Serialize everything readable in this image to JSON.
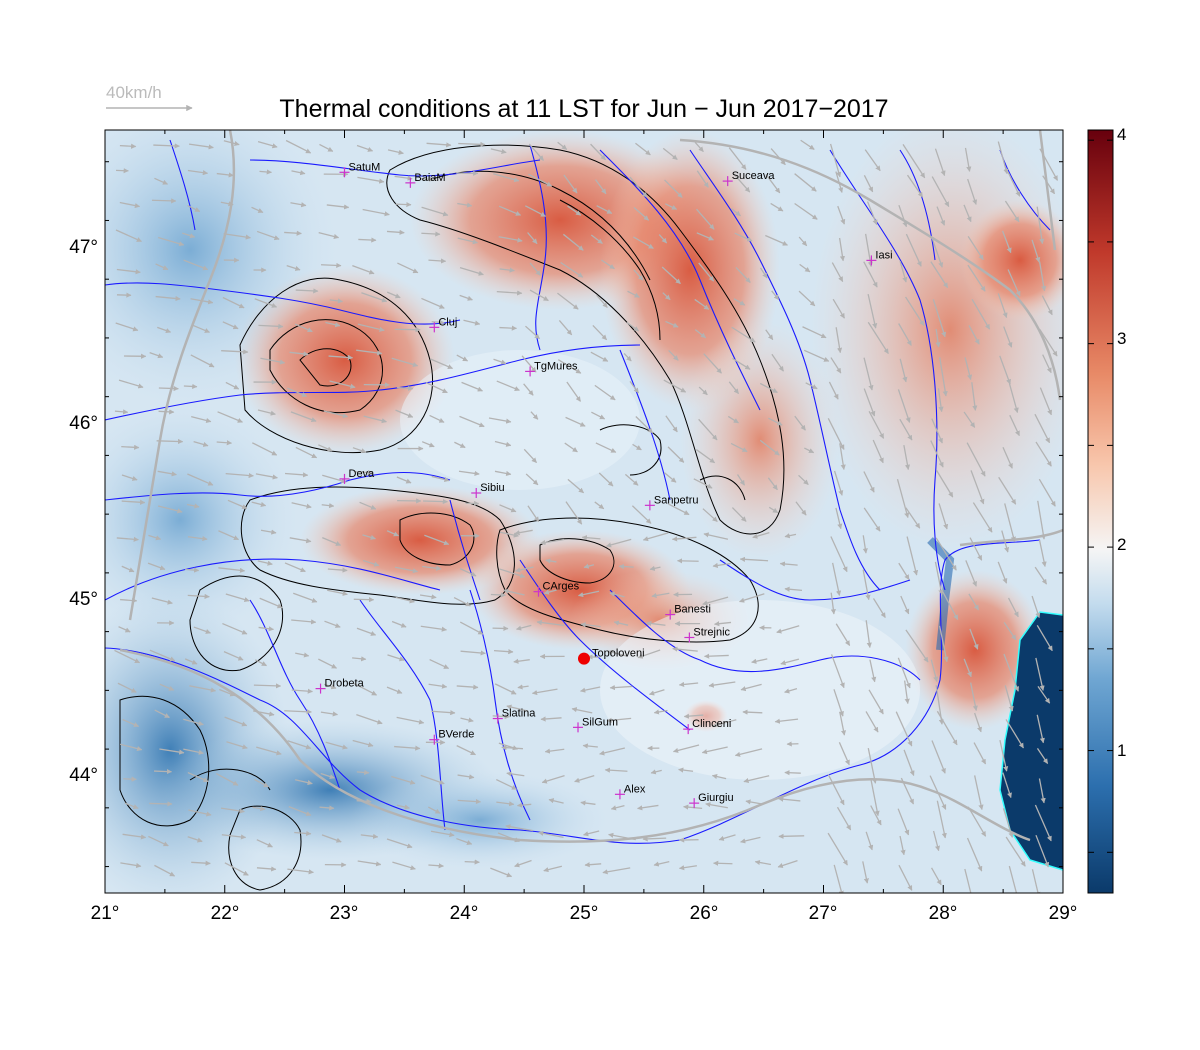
{
  "title": "Thermal conditions at 11 LST for Jun − Jun  2017−2017",
  "wind_legend": {
    "label": "40km/h"
  },
  "axes": {
    "x_ticks": [
      "21°",
      "22°",
      "23°",
      "24°",
      "25°",
      "26°",
      "27°",
      "28°",
      "29°"
    ],
    "y_ticks": [
      "44°",
      "45°",
      "46°",
      "47°"
    ],
    "lon_range": [
      21,
      29
    ],
    "lat_range": [
      43.35,
      47.68
    ]
  },
  "colorbar": {
    "ticks": [
      "1",
      "2",
      "3",
      "4"
    ],
    "range": [
      0.3,
      4.05
    ],
    "colormap": [
      "#0b3a6a",
      "#2c6fae",
      "#6fa6d2",
      "#c4dcee",
      "#f5f5f5",
      "#f8c7ad",
      "#e88a67",
      "#c0392b",
      "#67000d"
    ]
  },
  "cities": [
    {
      "name": "SatuM",
      "lon": 23.0,
      "lat": 47.44
    },
    {
      "name": "BaiaM",
      "lon": 23.55,
      "lat": 47.38
    },
    {
      "name": "Suceava",
      "lon": 26.2,
      "lat": 47.39
    },
    {
      "name": "Iasi",
      "lon": 27.4,
      "lat": 46.94
    },
    {
      "name": "Cluj",
      "lon": 23.75,
      "lat": 46.56
    },
    {
      "name": "TgMures",
      "lon": 24.55,
      "lat": 46.31
    },
    {
      "name": "Deva",
      "lon": 23.0,
      "lat": 45.7
    },
    {
      "name": "Sibiu",
      "lon": 24.1,
      "lat": 45.62
    },
    {
      "name": "Sanpetru",
      "lon": 25.55,
      "lat": 45.55
    },
    {
      "name": "CArges",
      "lon": 24.62,
      "lat": 45.06
    },
    {
      "name": "Banesti",
      "lon": 25.72,
      "lat": 44.93
    },
    {
      "name": "Strejnic",
      "lon": 25.88,
      "lat": 44.8
    },
    {
      "name": "Drobeta",
      "lon": 22.8,
      "lat": 44.51
    },
    {
      "name": "Slatina",
      "lon": 24.28,
      "lat": 44.34
    },
    {
      "name": "SilGum",
      "lon": 24.95,
      "lat": 44.29
    },
    {
      "name": "Clinceni",
      "lon": 25.87,
      "lat": 44.28
    },
    {
      "name": "BVerde",
      "lon": 23.75,
      "lat": 44.22
    },
    {
      "name": "Alex",
      "lon": 25.3,
      "lat": 43.91
    },
    {
      "name": "Giurgiu",
      "lon": 25.92,
      "lat": 43.86
    }
  ],
  "station": {
    "name": "Topoloveni",
    "lon": 25.0,
    "lat": 44.68
  },
  "colors": {
    "city_marker": "#cc33cc",
    "station_marker": "#ee0000",
    "river": "#1a1aff",
    "border": "#b3b3b3",
    "coast": "#33ffff",
    "arrow": "#b3b3b3"
  }
}
